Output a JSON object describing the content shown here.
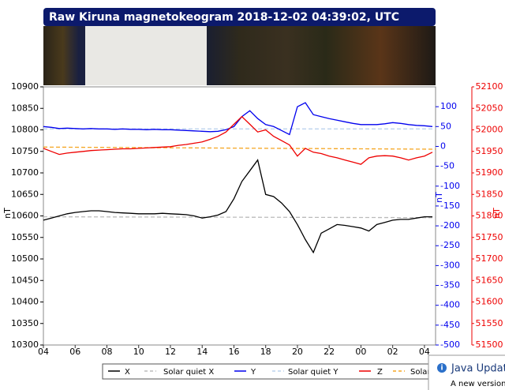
{
  "chart_data": {
    "type": "line",
    "title": "Raw Kiruna magnetokeogram 2018-12-02 04:39:02, UTC",
    "ylabel": "nT",
    "y2label": "nT",
    "y3label": "nT",
    "xlim": [
      4,
      28.7
    ],
    "xticks": [
      {
        "value": 4,
        "label": "04"
      },
      {
        "value": 6,
        "label": "06"
      },
      {
        "value": 8,
        "label": "08"
      },
      10,
      12,
      14,
      16,
      18,
      20,
      22,
      {
        "value": 24,
        "label": "00"
      },
      {
        "value": 26,
        "label": "02"
      },
      {
        "value": 28,
        "label": "04"
      }
    ],
    "ylim": [
      10300,
      10900
    ],
    "yticks": [
      10300,
      10350,
      10400,
      10450,
      10500,
      10550,
      10600,
      10650,
      10700,
      10750,
      10800,
      10850,
      10900
    ],
    "y2lim": [
      -500,
      150
    ],
    "y2ticks": [
      -500,
      -450,
      -400,
      -350,
      -300,
      -250,
      -200,
      -150,
      -100,
      -50,
      0,
      50,
      100
    ],
    "y3lim": [
      51500,
      52100
    ],
    "y3ticks": [
      51500,
      51550,
      51600,
      51650,
      51700,
      51750,
      51800,
      51850,
      51900,
      51950,
      52000,
      52050,
      52100
    ],
    "grid": false,
    "x": [
      4,
      4.5,
      5,
      5.5,
      6,
      6.5,
      7,
      7.5,
      8,
      8.5,
      9,
      9.5,
      10,
      10.5,
      11,
      11.5,
      12,
      12.5,
      13,
      13.5,
      14,
      14.5,
      15,
      15.5,
      16,
      16.5,
      17,
      17.5,
      18,
      18.5,
      19,
      19.5,
      20,
      20.5,
      21,
      21.5,
      22,
      22.5,
      23,
      23.5,
      24,
      24.5,
      25,
      25.5,
      26,
      26.5,
      27,
      27.5,
      28,
      28.5
    ],
    "series": [
      {
        "name": "X",
        "color": "#000000",
        "style": "solid",
        "axis": "y",
        "values": [
          10590,
          10595,
          10600,
          10605,
          10608,
          10610,
          10612,
          10612,
          10610,
          10608,
          10607,
          10606,
          10605,
          10605,
          10605,
          10606,
          10605,
          10604,
          10603,
          10600,
          10595,
          10598,
          10602,
          10610,
          10640,
          10680,
          10705,
          10730,
          10650,
          10645,
          10630,
          10610,
          10580,
          10545,
          10515,
          10560,
          10570,
          10580,
          10578,
          10575,
          10572,
          10565,
          10580,
          10585,
          10590,
          10592,
          10592,
          10595,
          10598,
          10598
        ]
      },
      {
        "name": "Solar quiet X",
        "color": "#bbbbbb",
        "style": "dashed",
        "axis": "y",
        "x": [
          4,
          28.7
        ],
        "values": [
          10598,
          10596
        ]
      },
      {
        "name": "Y",
        "color": "#0000ee",
        "style": "solid",
        "axis": "y2",
        "values": [
          50,
          48,
          45,
          46,
          45,
          44,
          45,
          44,
          44,
          43,
          44,
          43,
          43,
          42,
          43,
          42,
          42,
          41,
          40,
          39,
          38,
          37,
          38,
          42,
          50,
          75,
          90,
          70,
          55,
          50,
          40,
          30,
          100,
          110,
          80,
          75,
          70,
          66,
          62,
          58,
          55,
          55,
          55,
          57,
          60,
          58,
          55,
          53,
          52,
          50
        ]
      },
      {
        "name": "Solar quiet Y",
        "color": "#bcd4ee",
        "style": "dashed",
        "axis": "y2",
        "x": [
          4,
          28.7
        ],
        "values": [
          44,
          44
        ]
      },
      {
        "name": "Z",
        "color": "#ee0000",
        "style": "solid",
        "axis": "y3",
        "values": [
          51957,
          51950,
          51943,
          51946,
          51948,
          51950,
          51952,
          51953,
          51954,
          51955,
          51956,
          51956,
          51957,
          51958,
          51959,
          51960,
          51961,
          51964,
          51966,
          51969,
          51972,
          51978,
          51985,
          51995,
          52013,
          52031,
          52013,
          51995,
          52000,
          51985,
          51975,
          51965,
          51939,
          51957,
          51948,
          51945,
          51939,
          51935,
          51930,
          51925,
          51920,
          51935,
          51939,
          51940,
          51939,
          51935,
          51930,
          51935,
          51939,
          51948
        ]
      },
      {
        "name": "Solar quiet Z",
        "color": "#f5a623",
        "style": "dashed",
        "axis": "y3",
        "x": [
          4,
          28.7
        ],
        "values": [
          51960,
          51955
        ]
      }
    ]
  },
  "popup": {
    "title": "Java Updat",
    "text": "A new version"
  }
}
